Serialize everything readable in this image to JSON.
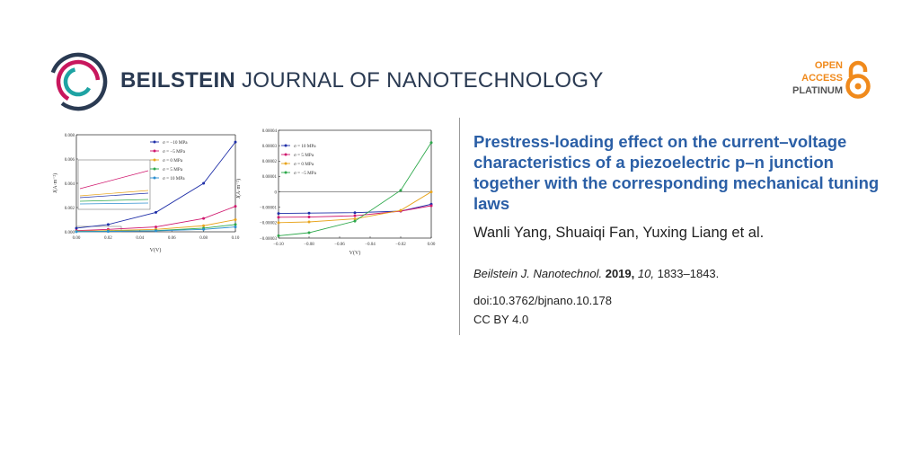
{
  "journal": {
    "name_bold": "BEILSTEIN",
    "name_rest": "JOURNAL OF NANOTECHNOLOGY",
    "brand_color": "#2a3a52",
    "logo_icon": "concentric-arcs-logo-icon"
  },
  "open_access": {
    "line1": "OPEN",
    "line2": "ACCESS",
    "line3": "PLATINUM",
    "color": "#f08a1c",
    "icon": "open-lock-icon"
  },
  "article": {
    "title": "Prestress-loading effect on the current–voltage characteristics of a piezoelectric p–n junction together with the corresponding mechanical tuning laws",
    "title_color": "#2b5fa6",
    "authors": "Wanli Yang, Shuaiqi Fan, Yuxing Liang et al.",
    "citation": {
      "journal": "Beilstein J. Nanotechnol.",
      "year": "2019,",
      "volume": "10,",
      "pages": "1833–1843."
    },
    "doi": "doi:10.3762/bjnano.10.178",
    "license": "CC BY 4.0"
  },
  "chart_data": [
    {
      "type": "line",
      "xlabel": "V(V)",
      "ylabel": "J(A·m⁻²)",
      "xlim": [
        0,
        0.1
      ],
      "ylim": [
        0,
        0.008
      ],
      "xticks": [
        "0.00",
        "0.02",
        "0.04",
        "0.06",
        "0.08",
        "0.10"
      ],
      "yticks": [
        "0.000",
        "0.002",
        "0.004",
        "0.006",
        "0.008"
      ],
      "legend_position": "top-center",
      "inset": "zoom of low-voltage region (top-left)",
      "series": [
        {
          "name": "σ = −10 MPa",
          "color": "#1f2fa8",
          "x": [
            0,
            0.02,
            0.05,
            0.08,
            0.1
          ],
          "y": [
            0.0003,
            0.0006,
            0.0016,
            0.004,
            0.0074
          ]
        },
        {
          "name": "σ = −5 MPa",
          "color": "#d0186e",
          "x": [
            0,
            0.02,
            0.05,
            0.08,
            0.1
          ],
          "y": [
            0.0001,
            0.0002,
            0.0004,
            0.0011,
            0.0021
          ]
        },
        {
          "name": "σ = 0 MPa",
          "color": "#e8a41c",
          "x": [
            0,
            0.02,
            0.05,
            0.08,
            0.1
          ],
          "y": [
            5e-05,
            0.0001,
            0.0002,
            0.0005,
            0.001
          ]
        },
        {
          "name": "σ = 5 MPa",
          "color": "#2ca84a",
          "x": [
            0,
            0.02,
            0.05,
            0.08,
            0.1
          ],
          "y": [
            2e-05,
            5e-05,
            0.0001,
            0.0003,
            0.0006
          ]
        },
        {
          "name": "σ = 10 MPa",
          "color": "#2c8fd0",
          "x": [
            0,
            0.02,
            0.05,
            0.08,
            0.1
          ],
          "y": [
            1e-05,
            3e-05,
            8e-05,
            0.0002,
            0.0004
          ]
        }
      ]
    },
    {
      "type": "line",
      "xlabel": "V(V)",
      "ylabel": "J(A·m⁻²)",
      "xlim": [
        -0.1,
        0
      ],
      "ylim": [
        -3e-05,
        4e-05
      ],
      "xticks": [
        "−0.10",
        "−0.08",
        "−0.06",
        "−0.04",
        "−0.02",
        "0.00"
      ],
      "yticks": [
        "0.00004",
        "0.00003",
        "0.00002",
        "0.00001",
        "0",
        "−0.00001",
        "−0.00002",
        "−0.00003"
      ],
      "legend_position": "top-left",
      "series": [
        {
          "name": "σ = 10 MPa",
          "color": "#1f2fa8",
          "x": [
            -0.1,
            -0.08,
            -0.05,
            -0.02,
            0
          ],
          "y": [
            -1.4e-05,
            -1.38e-05,
            -1.35e-05,
            -1.25e-05,
            -8e-06
          ]
        },
        {
          "name": "σ = 5 MPa",
          "color": "#d0186e",
          "x": [
            -0.1,
            -0.08,
            -0.05,
            -0.02,
            0
          ],
          "y": [
            -1.65e-05,
            -1.63e-05,
            -1.55e-05,
            -1.25e-05,
            -9e-06
          ]
        },
        {
          "name": "σ = 0 MPa",
          "color": "#e8a41c",
          "x": [
            -0.1,
            -0.08,
            -0.05,
            -0.02,
            0
          ],
          "y": [
            -2e-05,
            -1.95e-05,
            -1.75e-05,
            -1.2e-05,
            0
          ]
        },
        {
          "name": "σ = −5 MPa",
          "color": "#2ca84a",
          "x": [
            -0.1,
            -0.08,
            -0.05,
            -0.02,
            0
          ],
          "y": [
            -2.85e-05,
            -2.65e-05,
            -1.9e-05,
            1e-06,
            3.2e-05
          ]
        }
      ]
    }
  ]
}
